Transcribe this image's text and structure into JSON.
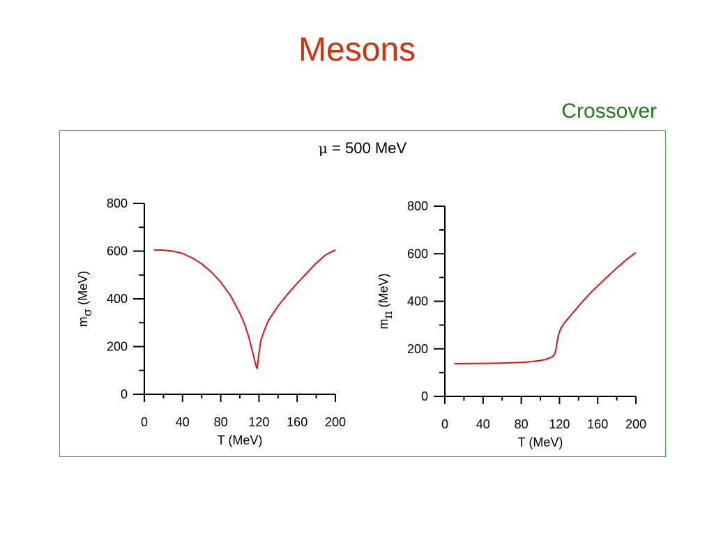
{
  "page": {
    "title": "Mesons",
    "subtitle": "Crossover",
    "panel_label_symbol": "μ",
    "panel_label_text": " = 500 MeV"
  },
  "colors": {
    "title": "#cc3311",
    "subtitle": "#1f7a1f",
    "frame": "#44aa44",
    "curve": "#dd1111"
  },
  "chart_data": [
    {
      "type": "line",
      "title": "",
      "xlabel": "T (MeV)",
      "ylabel": "m_σ (MeV)",
      "ylabel_main": "m",
      "ylabel_sub": "σ",
      "ylabel_unit": " (MeV)",
      "xlim": [
        0,
        200
      ],
      "ylim": [
        0,
        800
      ],
      "xticks": [
        0,
        40,
        80,
        120,
        160,
        200
      ],
      "yticks": [
        0,
        200,
        400,
        600,
        800
      ],
      "grid": false,
      "series": [
        {
          "x": [
            10,
            20,
            30,
            40,
            50,
            60,
            70,
            80,
            90,
            100,
            105,
            110,
            113,
            115,
            117,
            118,
            119,
            120,
            122,
            125,
            130,
            140,
            150,
            160,
            170,
            180,
            190,
            200
          ],
          "y": [
            605,
            604,
            600,
            590,
            572,
            547,
            513,
            470,
            415,
            340,
            293,
            230,
            183,
            150,
            118,
            108,
            135,
            175,
            225,
            262,
            310,
            370,
            420,
            465,
            508,
            550,
            585,
            605
          ]
        }
      ]
    },
    {
      "type": "line",
      "title": "",
      "xlabel": "T (MeV)",
      "ylabel": "m_π (MeV)",
      "ylabel_main": "m",
      "ylabel_sub": "π",
      "ylabel_unit": " (MeV)",
      "xlim": [
        0,
        200
      ],
      "ylim": [
        0,
        800
      ],
      "xticks": [
        0,
        40,
        80,
        120,
        160,
        200
      ],
      "yticks": [
        0,
        200,
        400,
        600,
        800
      ],
      "grid": false,
      "series": [
        {
          "x": [
            10,
            20,
            40,
            60,
            80,
            90,
            100,
            105,
            110,
            113,
            115,
            116,
            117,
            118,
            119,
            120,
            122,
            125,
            130,
            140,
            150,
            160,
            170,
            180,
            190,
            200
          ],
          "y": [
            138,
            138,
            139,
            140,
            143,
            146,
            151,
            155,
            162,
            168,
            178,
            192,
            215,
            240,
            260,
            272,
            290,
            308,
            332,
            380,
            425,
            465,
            503,
            540,
            575,
            605
          ]
        }
      ]
    }
  ]
}
